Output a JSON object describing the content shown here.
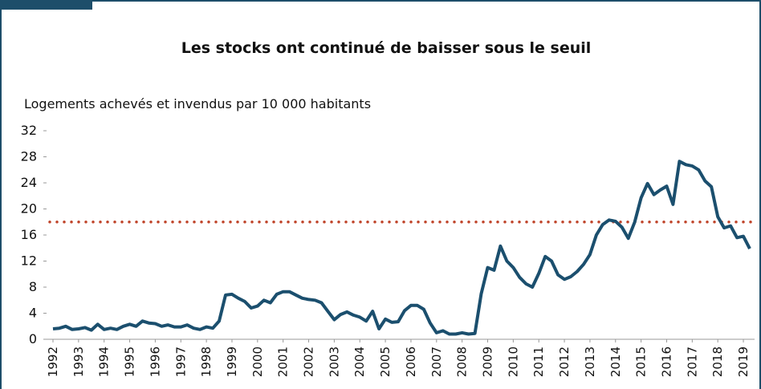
{
  "chart_data": {
    "type": "line",
    "title": "Les stocks ont continué de baisser sous le seuil",
    "y_label": "Logements achevés et invendus par 10 000 habitants",
    "categories": [
      "1992",
      null,
      null,
      null,
      "1993",
      null,
      null,
      null,
      "1994",
      null,
      null,
      null,
      "1995",
      null,
      null,
      null,
      "1996",
      null,
      null,
      null,
      "1997",
      null,
      null,
      null,
      "1998",
      null,
      null,
      null,
      "1999",
      null,
      null,
      null,
      "2000",
      null,
      null,
      null,
      "2001",
      null,
      null,
      null,
      "2002",
      null,
      null,
      null,
      "2003",
      null,
      null,
      null,
      "2004",
      null,
      null,
      null,
      "2005",
      null,
      null,
      null,
      "2006",
      null,
      null,
      null,
      "2007",
      null,
      null,
      null,
      "2008",
      null,
      null,
      null,
      "2009",
      null,
      null,
      null,
      "2010",
      null,
      null,
      null,
      "2011",
      null,
      null,
      null,
      "2012",
      null,
      null,
      null,
      "2013",
      null,
      null,
      null,
      "2014",
      null,
      null,
      null,
      "2015",
      null,
      null,
      null,
      "2016",
      null,
      null,
      null,
      "2017",
      null,
      null,
      null,
      "2018",
      null,
      null,
      null,
      "2019",
      null
    ],
    "series": [
      {
        "color": "#1b4f6e",
        "values": [
          1.6,
          1.7,
          2.0,
          1.5,
          1.6,
          1.8,
          1.4,
          2.3,
          1.5,
          1.7,
          1.5,
          2.0,
          2.3,
          2.0,
          2.8,
          2.5,
          2.4,
          2.0,
          2.2,
          1.9,
          1.9,
          2.2,
          1.7,
          1.5,
          1.9,
          1.7,
          2.8,
          6.8,
          6.9,
          6.3,
          5.8,
          4.8,
          5.1,
          6.0,
          5.6,
          6.9,
          7.3,
          7.3,
          6.8,
          6.3,
          6.1,
          6.0,
          5.6,
          4.3,
          3.0,
          3.8,
          4.2,
          3.7,
          3.4,
          2.8,
          4.3,
          1.6,
          3.1,
          2.6,
          2.7,
          4.4,
          5.2,
          5.2,
          4.6,
          2.5,
          1.0,
          1.3,
          0.8,
          0.8,
          1.0,
          0.8,
          0.9,
          7.0,
          11.0,
          10.6,
          14.3,
          12.0,
          11.0,
          9.5,
          8.5,
          8.0,
          10.1,
          12.7,
          12.0,
          9.9,
          9.2,
          9.6,
          10.4,
          11.5,
          13.0,
          16.0,
          17.6,
          18.3,
          18.1,
          17.2,
          15.5,
          18.0,
          21.7,
          23.9,
          22.2,
          22.9,
          23.5,
          20.7,
          27.3,
          26.8,
          26.6,
          26.0,
          24.3,
          23.4,
          18.8,
          17.1,
          17.4,
          15.6,
          15.8,
          13.9
        ]
      }
    ],
    "threshold": {
      "value": 18,
      "color": "#c0452b"
    },
    "ylim": [
      0,
      32
    ],
    "yticks": [
      0,
      4,
      8,
      12,
      16,
      20,
      24,
      28,
      32
    ]
  }
}
